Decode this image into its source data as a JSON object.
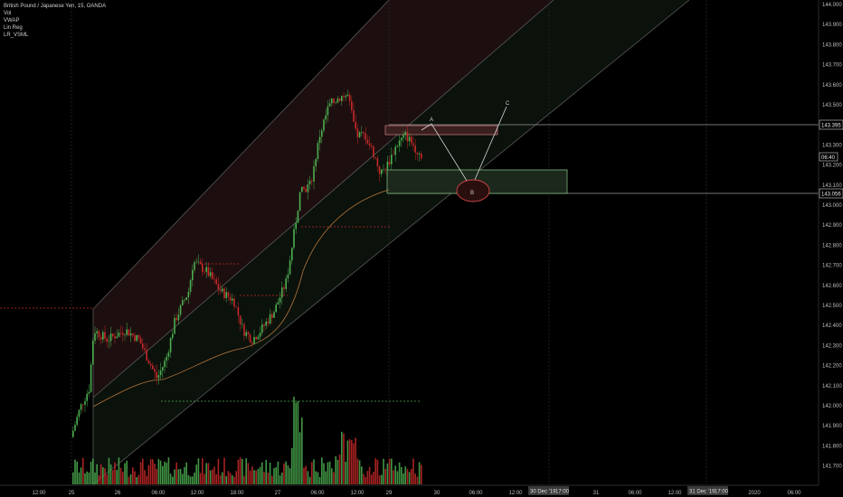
{
  "legend": {
    "title": "British Pound / Japanese Yen, 15, OANDA",
    "indicators": [
      "Vol",
      "VWAP",
      "Lin Reg",
      "LR_VSML"
    ]
  },
  "colors": {
    "background": "#000000",
    "bull": "#4caf50",
    "bear": "#c62828",
    "channel_upper_fill": "#2a1414",
    "channel_lower_fill": "#101510",
    "channel_line": "#6d6d6d",
    "dotted_red": "#c62828",
    "dotted_green": "#4caf50",
    "vwap": "#b5763c",
    "zone_fill": "#1e2a1e",
    "zone_border": "#8bc98b",
    "resistance_fill": "#3a1f1f",
    "resistance_border": "#d08080",
    "circle": "#d04545"
  },
  "price_axis": {
    "ticks": [
      "144.000",
      "143.900",
      "143.800",
      "143.700",
      "143.600",
      "143.500",
      "143.400",
      "143.300",
      "143.200",
      "143.100",
      "143.000",
      "142.900",
      "142.800",
      "142.700",
      "142.600",
      "142.500",
      "142.400",
      "142.300",
      "142.200",
      "142.100",
      "142.000",
      "141.900",
      "141.800",
      "141.700"
    ],
    "price_label_upper": "143.395",
    "price_label_lower": "143.056",
    "countdown": "06:40",
    "last_price": "143.200"
  },
  "time_axis": {
    "ticks": [
      "12:00",
      "25",
      "26",
      "06:00",
      "12:00",
      "18:00",
      "27",
      "06:00",
      "12:00",
      "29",
      "30",
      "06:00",
      "12:00",
      "31",
      "06:00",
      "12:00",
      "2020",
      "06:00"
    ],
    "badge_1": "30 Dec '19",
    "badge_1_time": "17:00",
    "badge_2": "31 Dec '19",
    "badge_2_time": "17:00"
  },
  "annotations": {
    "wave_labels": [
      "A",
      "B",
      "C"
    ]
  },
  "chart_data": {
    "type": "candlestick",
    "symbol": "GBPJPY",
    "timeframe": "15",
    "y_range": [
      141.65,
      144.02
    ],
    "levels": [
      143.395,
      143.056,
      142.5,
      142.9,
      142.72,
      142.55,
      142.03
    ],
    "candles_close": [
      141.85,
      142.05,
      142.3,
      142.35,
      142.3,
      142.38,
      142.25,
      142.1,
      142.15,
      142.4,
      142.7,
      142.6,
      142.5,
      142.3,
      142.25,
      142.4,
      142.45,
      142.6,
      142.95,
      143.1,
      143.3,
      143.5,
      143.45,
      143.3,
      143.15,
      143.3,
      143.25,
      143.2
    ]
  }
}
